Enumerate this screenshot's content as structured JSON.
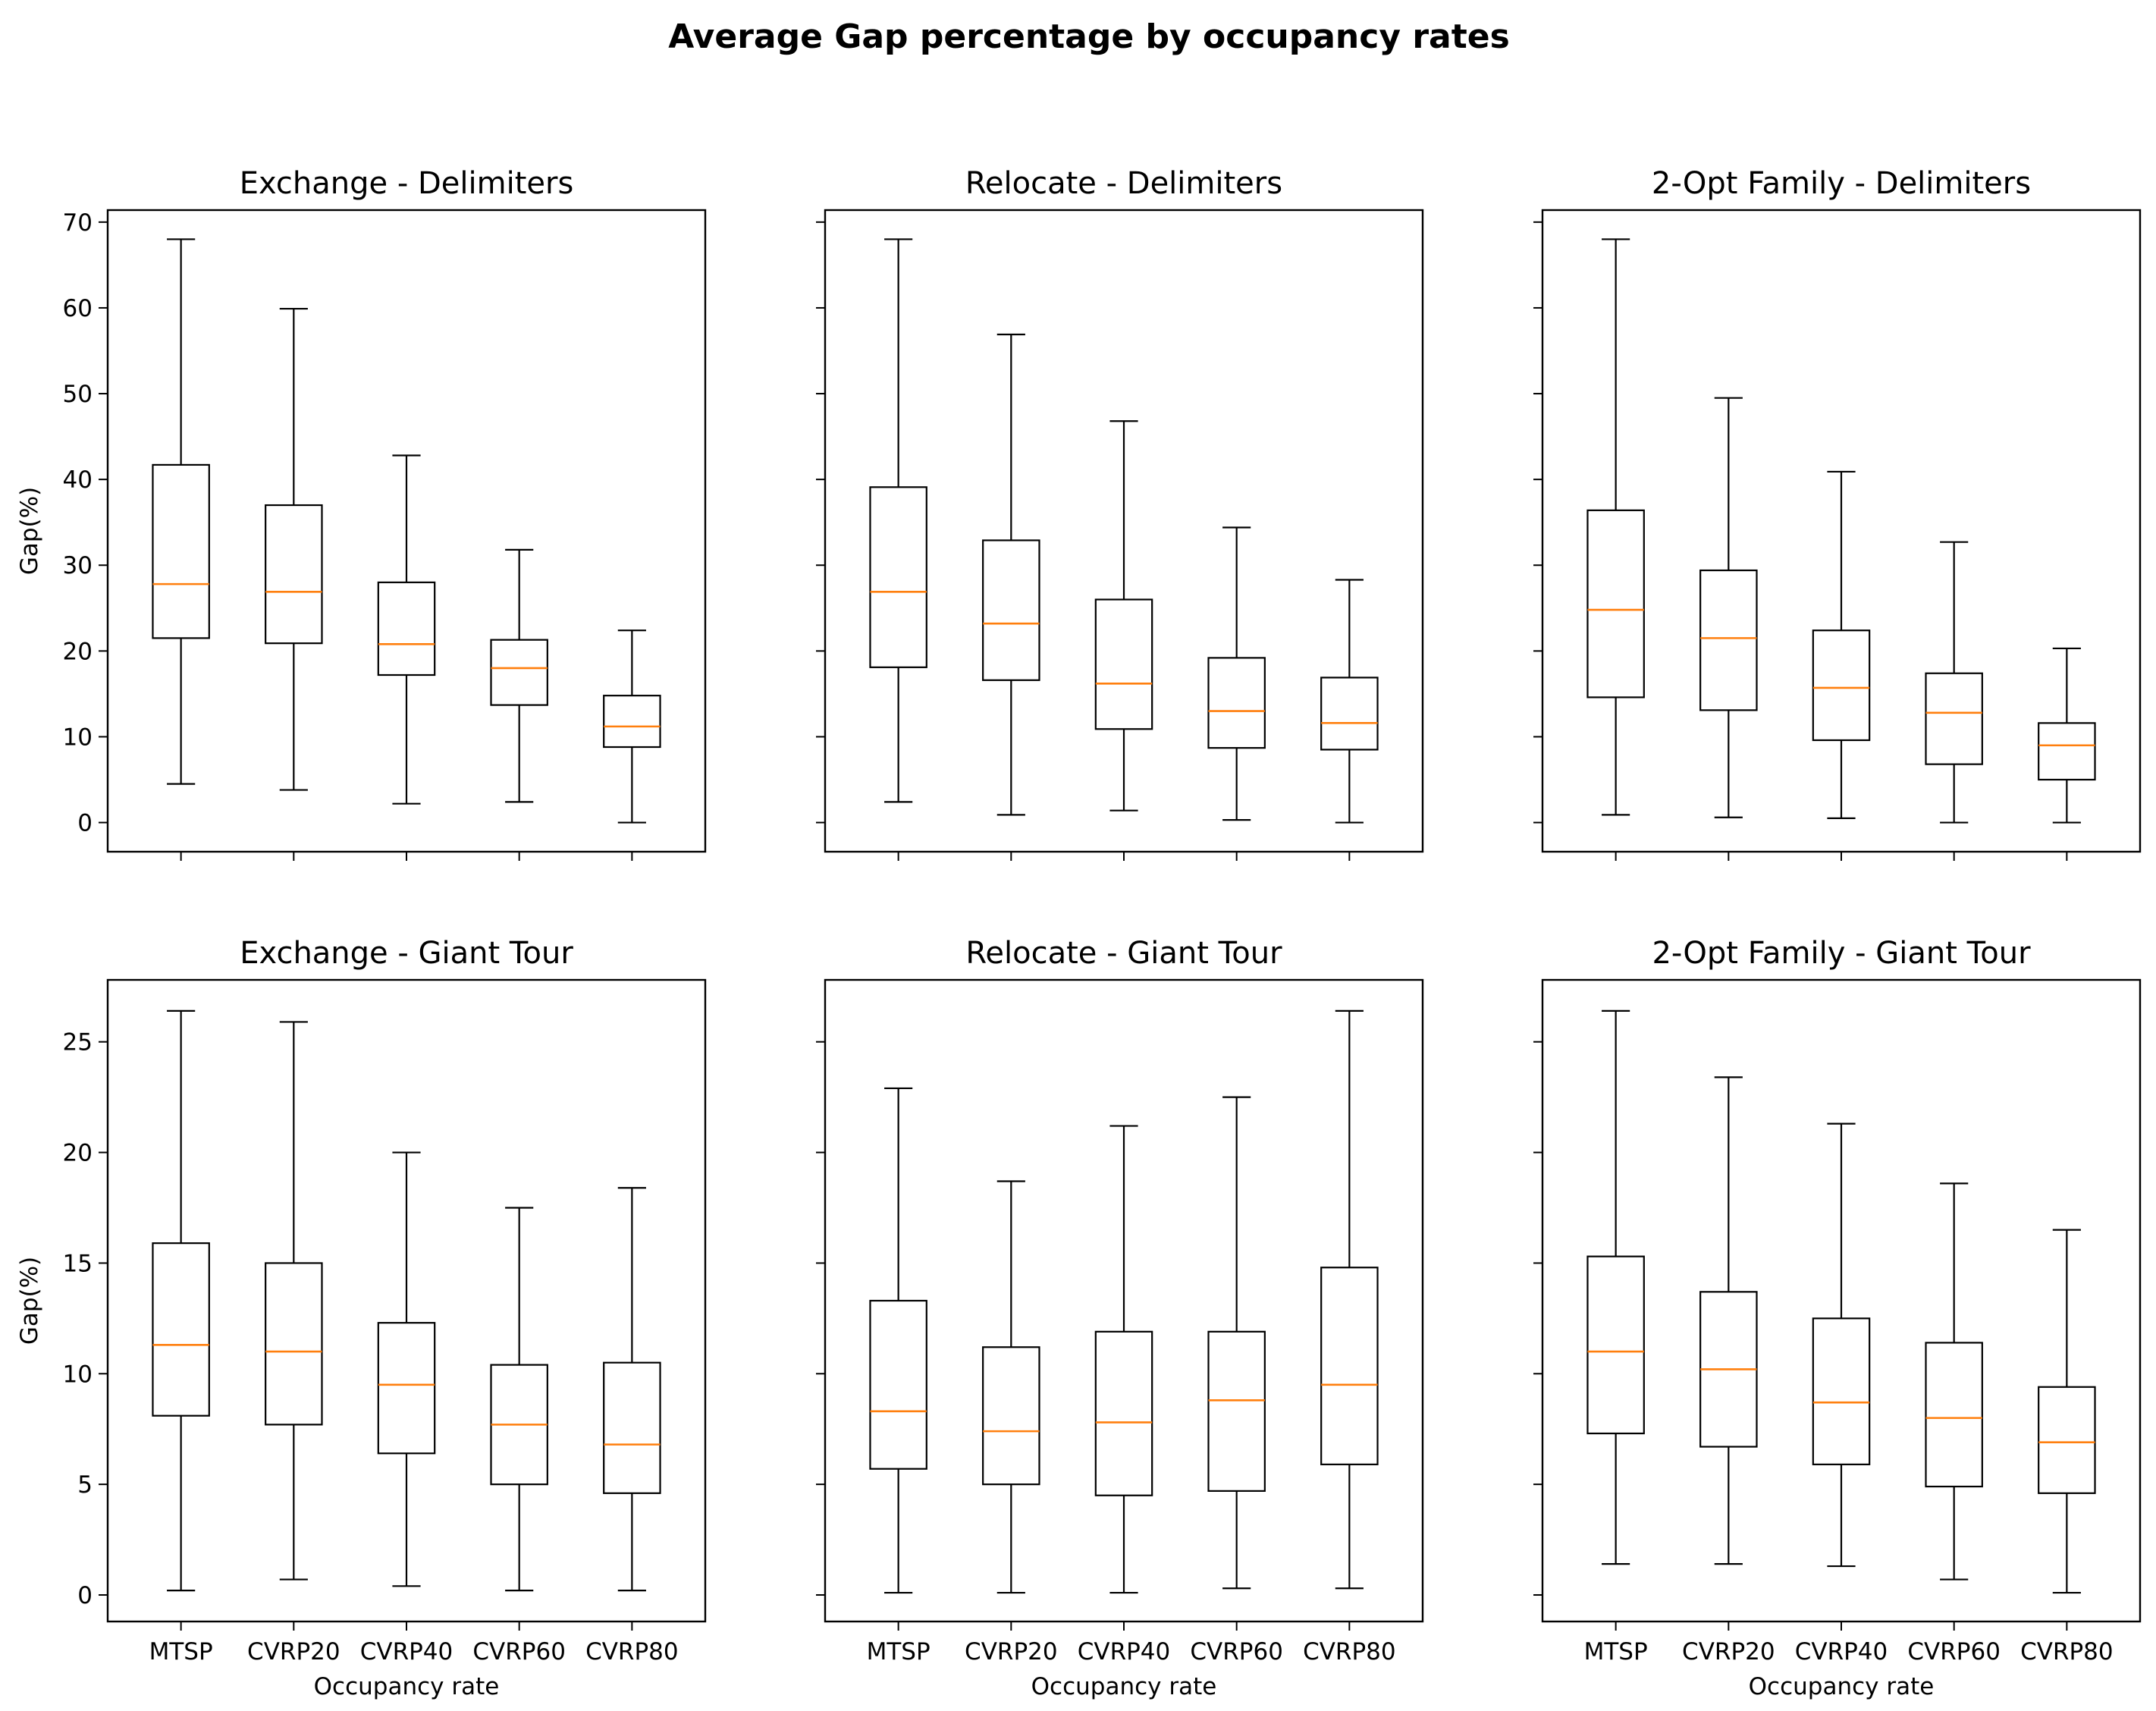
{
  "figure_title": "Average Gap percentage by occupancy rates",
  "colors": {
    "box": "#000000",
    "median": "#ff7f0e",
    "background": "#ffffff"
  },
  "chart_data": [
    {
      "type": "box",
      "title": "Exchange - Delimiters",
      "xlabel": "",
      "ylabel": "Gap(%)",
      "ylim": [
        -3.4,
        71.4
      ],
      "yticks": [
        0,
        10,
        20,
        30,
        40,
        50,
        60,
        70
      ],
      "categories": [
        "MTSP",
        "CVRP20",
        "CVRP40",
        "CVRP60",
        "CVRP80"
      ],
      "boxes": [
        {
          "min": 4.5,
          "q1": 21.5,
          "median": 27.8,
          "q3": 41.7,
          "max": 68.0
        },
        {
          "min": 3.8,
          "q1": 20.9,
          "median": 26.9,
          "q3": 37.0,
          "max": 59.9
        },
        {
          "min": 2.2,
          "q1": 17.2,
          "median": 20.8,
          "q3": 28.0,
          "max": 42.8
        },
        {
          "min": 2.4,
          "q1": 13.7,
          "median": 18.0,
          "q3": 21.3,
          "max": 31.8
        },
        {
          "min": 0.0,
          "q1": 8.8,
          "median": 11.2,
          "q3": 14.8,
          "max": 22.4
        }
      ]
    },
    {
      "type": "box",
      "title": "Relocate - Delimiters",
      "xlabel": "",
      "ylabel": "",
      "ylim": [
        -3.4,
        71.4
      ],
      "yticks": [
        0,
        10,
        20,
        30,
        40,
        50,
        60,
        70
      ],
      "categories": [
        "MTSP",
        "CVRP20",
        "CVRP40",
        "CVRP60",
        "CVRP80"
      ],
      "boxes": [
        {
          "min": 2.4,
          "q1": 18.1,
          "median": 26.9,
          "q3": 39.1,
          "max": 68.0
        },
        {
          "min": 0.9,
          "q1": 16.6,
          "median": 23.2,
          "q3": 32.9,
          "max": 56.9
        },
        {
          "min": 1.4,
          "q1": 10.9,
          "median": 16.2,
          "q3": 26.0,
          "max": 46.8
        },
        {
          "min": 0.3,
          "q1": 8.7,
          "median": 13.0,
          "q3": 19.2,
          "max": 34.4
        },
        {
          "min": 0.0,
          "q1": 8.5,
          "median": 11.6,
          "q3": 16.9,
          "max": 28.3
        }
      ]
    },
    {
      "type": "box",
      "title": "2-Opt Family - Delimiters",
      "xlabel": "",
      "ylabel": "",
      "ylim": [
        -3.4,
        71.4
      ],
      "yticks": [
        0,
        10,
        20,
        30,
        40,
        50,
        60,
        70
      ],
      "categories": [
        "MTSP",
        "CVRP20",
        "CVRP40",
        "CVRP60",
        "CVRP80"
      ],
      "boxes": [
        {
          "min": 0.9,
          "q1": 14.6,
          "median": 24.8,
          "q3": 36.4,
          "max": 68.0
        },
        {
          "min": 0.6,
          "q1": 13.1,
          "median": 21.5,
          "q3": 29.4,
          "max": 49.5
        },
        {
          "min": 0.5,
          "q1": 9.6,
          "median": 15.7,
          "q3": 22.4,
          "max": 40.9
        },
        {
          "min": 0.0,
          "q1": 6.8,
          "median": 12.8,
          "q3": 17.4,
          "max": 32.7
        },
        {
          "min": 0.0,
          "q1": 5.0,
          "median": 9.0,
          "q3": 11.6,
          "max": 20.3
        }
      ]
    },
    {
      "type": "box",
      "title": "Exchange - Giant Tour",
      "xlabel": "Occupancy rate",
      "ylabel": "Gap(%)",
      "ylim": [
        -1.2,
        27.8
      ],
      "yticks": [
        0,
        5,
        10,
        15,
        20,
        25
      ],
      "categories": [
        "MTSP",
        "CVRP20",
        "CVRP40",
        "CVRP60",
        "CVRP80"
      ],
      "boxes": [
        {
          "min": 0.2,
          "q1": 8.1,
          "median": 11.3,
          "q3": 15.9,
          "max": 26.4
        },
        {
          "min": 0.7,
          "q1": 7.7,
          "median": 11.0,
          "q3": 15.0,
          "max": 25.9
        },
        {
          "min": 0.4,
          "q1": 6.4,
          "median": 9.5,
          "q3": 12.3,
          "max": 20.0
        },
        {
          "min": 0.2,
          "q1": 5.0,
          "median": 7.7,
          "q3": 10.4,
          "max": 17.5
        },
        {
          "min": 0.2,
          "q1": 4.6,
          "median": 6.8,
          "q3": 10.5,
          "max": 18.4
        }
      ]
    },
    {
      "type": "box",
      "title": "Relocate - Giant Tour",
      "xlabel": "Occupancy rate",
      "ylabel": "",
      "ylim": [
        -1.2,
        27.8
      ],
      "yticks": [
        0,
        5,
        10,
        15,
        20,
        25
      ],
      "categories": [
        "MTSP",
        "CVRP20",
        "CVRP40",
        "CVRP60",
        "CVRP80"
      ],
      "boxes": [
        {
          "min": 0.1,
          "q1": 5.7,
          "median": 8.3,
          "q3": 13.3,
          "max": 22.9
        },
        {
          "min": 0.1,
          "q1": 5.0,
          "median": 7.4,
          "q3": 11.2,
          "max": 18.7
        },
        {
          "min": 0.1,
          "q1": 4.5,
          "median": 7.8,
          "q3": 11.9,
          "max": 21.2
        },
        {
          "min": 0.3,
          "q1": 4.7,
          "median": 8.8,
          "q3": 11.9,
          "max": 22.5
        },
        {
          "min": 0.3,
          "q1": 5.9,
          "median": 9.5,
          "q3": 14.8,
          "max": 26.4
        }
      ]
    },
    {
      "type": "box",
      "title": "2-Opt Family - Giant Tour",
      "xlabel": "Occupancy rate",
      "ylabel": "",
      "ylim": [
        -1.2,
        27.8
      ],
      "yticks": [
        0,
        5,
        10,
        15,
        20,
        25
      ],
      "categories": [
        "MTSP",
        "CVRP20",
        "CVRP40",
        "CVRP60",
        "CVRP80"
      ],
      "boxes": [
        {
          "min": 1.4,
          "q1": 7.3,
          "median": 11.0,
          "q3": 15.3,
          "max": 26.4
        },
        {
          "min": 1.4,
          "q1": 6.7,
          "median": 10.2,
          "q3": 13.7,
          "max": 23.4
        },
        {
          "min": 1.3,
          "q1": 5.9,
          "median": 8.7,
          "q3": 12.5,
          "max": 21.3
        },
        {
          "min": 0.7,
          "q1": 4.9,
          "median": 8.0,
          "q3": 11.4,
          "max": 18.6
        },
        {
          "min": 0.1,
          "q1": 4.6,
          "median": 6.9,
          "q3": 9.4,
          "max": 16.5
        }
      ]
    }
  ]
}
